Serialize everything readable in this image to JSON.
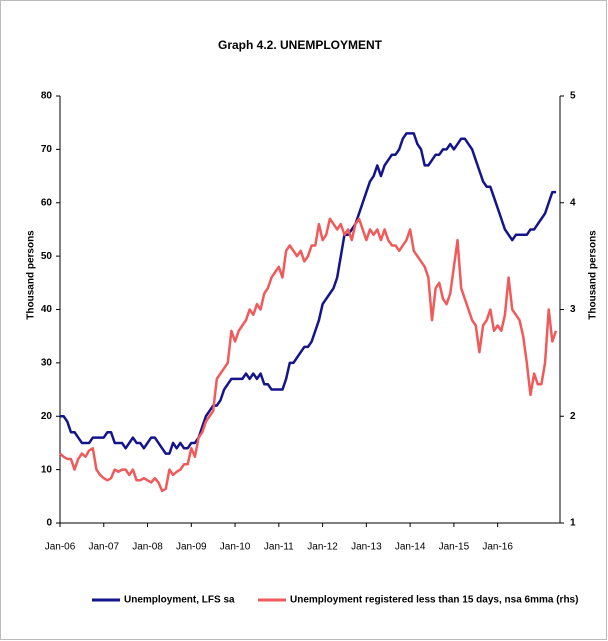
{
  "chart_data": {
    "type": "line",
    "title": "Graph 4.2. UNEMPLOYMENT",
    "ylabel": "Thousand persons",
    "y2label": "Thousand persons",
    "categories": [
      "Jan-06",
      null,
      null,
      null,
      null,
      null,
      null,
      null,
      null,
      null,
      null,
      null,
      "Jan-07",
      null,
      null,
      null,
      null,
      null,
      null,
      null,
      null,
      null,
      null,
      null,
      "Jan-08",
      null,
      null,
      null,
      null,
      null,
      null,
      null,
      null,
      null,
      null,
      null,
      "Jan-09",
      null,
      null,
      null,
      null,
      null,
      null,
      null,
      null,
      null,
      null,
      null,
      "Jan-10",
      null,
      null,
      null,
      null,
      null,
      null,
      null,
      null,
      null,
      null,
      null,
      "Jan-11",
      null,
      null,
      null,
      null,
      null,
      null,
      null,
      null,
      null,
      null,
      null,
      "Jan-12",
      null,
      null,
      null,
      null,
      null,
      null,
      null,
      null,
      null,
      null,
      null,
      "Jan-13",
      null,
      null,
      null,
      null,
      null,
      null,
      null,
      null,
      null,
      null,
      null,
      "Jan-14",
      null,
      null,
      null,
      null,
      null,
      null,
      null,
      null,
      null,
      null,
      null,
      "Jan-15",
      null,
      null,
      null,
      null,
      null,
      null,
      null,
      null,
      null,
      null,
      null,
      "Jan-16",
      null,
      null,
      null,
      null,
      null,
      null,
      null,
      null,
      null,
      null,
      null,
      null,
      null,
      null,
      null,
      null
    ],
    "ylim": [
      0,
      80
    ],
    "yticks": [
      0,
      10,
      20,
      30,
      40,
      50,
      60,
      70,
      80
    ],
    "y2lim": [
      1,
      5
    ],
    "y2ticks": [
      1,
      2,
      3,
      4,
      5
    ],
    "legend": "bottom",
    "series": [
      {
        "name": "Unemployment, LFS sa",
        "color": "#14148c",
        "axis": "y",
        "values": [
          20,
          20,
          19,
          17,
          17,
          16,
          15,
          15,
          15,
          16,
          16,
          16,
          16,
          17,
          17,
          15,
          15,
          15,
          14,
          15,
          16,
          15,
          15,
          14,
          15,
          16,
          16,
          15,
          14,
          13,
          13,
          15,
          14,
          15,
          14,
          14,
          15,
          15,
          16,
          18,
          20,
          21,
          22,
          22,
          23,
          25,
          26,
          27,
          27,
          27,
          27,
          28,
          27,
          28,
          27,
          28,
          26,
          26,
          25,
          25,
          25,
          25,
          27,
          30,
          30,
          31,
          32,
          33,
          33,
          34,
          36,
          38,
          41,
          42,
          43,
          44,
          46,
          50,
          54,
          54,
          55,
          56,
          58,
          60,
          62,
          64,
          65,
          67,
          65,
          67,
          68,
          69,
          69,
          70,
          72,
          73,
          73,
          73,
          71,
          70,
          67,
          67,
          68,
          69,
          69,
          70,
          70,
          71,
          70,
          71,
          72,
          72,
          71,
          70,
          68,
          66,
          64,
          63,
          63,
          61,
          59,
          57,
          55,
          54,
          53,
          54,
          54,
          54,
          54,
          55,
          55,
          56,
          57,
          58,
          60,
          62,
          62
        ]
      },
      {
        "name": "Unemployment registered less than 15 days, nsa 6mma (rhs)",
        "color": "#f05a5a",
        "axis": "y2",
        "values": [
          1.65,
          1.62,
          1.6,
          1.6,
          1.5,
          1.6,
          1.65,
          1.62,
          1.68,
          1.7,
          1.5,
          1.45,
          1.42,
          1.4,
          1.42,
          1.5,
          1.48,
          1.5,
          1.5,
          1.45,
          1.5,
          1.4,
          1.4,
          1.42,
          1.4,
          1.38,
          1.42,
          1.38,
          1.3,
          1.32,
          1.5,
          1.45,
          1.48,
          1.5,
          1.55,
          1.55,
          1.7,
          1.62,
          1.8,
          1.85,
          1.95,
          2.0,
          2.05,
          2.35,
          2.4,
          2.45,
          2.5,
          2.8,
          2.7,
          2.8,
          2.85,
          2.9,
          3.0,
          2.95,
          3.05,
          3.0,
          3.15,
          3.2,
          3.3,
          3.35,
          3.4,
          3.3,
          3.55,
          3.6,
          3.55,
          3.5,
          3.55,
          3.45,
          3.5,
          3.6,
          3.6,
          3.8,
          3.65,
          3.7,
          3.85,
          3.8,
          3.75,
          3.8,
          3.7,
          3.75,
          3.65,
          3.8,
          3.85,
          3.75,
          3.65,
          3.75,
          3.7,
          3.75,
          3.65,
          3.75,
          3.65,
          3.6,
          3.6,
          3.55,
          3.6,
          3.65,
          3.75,
          3.55,
          3.5,
          3.45,
          3.4,
          3.3,
          2.9,
          3.2,
          3.25,
          3.1,
          3.05,
          3.15,
          3.4,
          3.65,
          3.2,
          3.1,
          3.0,
          2.9,
          2.85,
          2.6,
          2.85,
          2.9,
          3.0,
          2.8,
          2.85,
          2.8,
          2.95,
          3.3,
          3.0,
          2.95,
          2.9,
          2.75,
          2.5,
          2.2,
          2.4,
          2.3,
          2.3,
          2.5,
          3.0,
          2.7,
          2.8
        ]
      }
    ]
  }
}
